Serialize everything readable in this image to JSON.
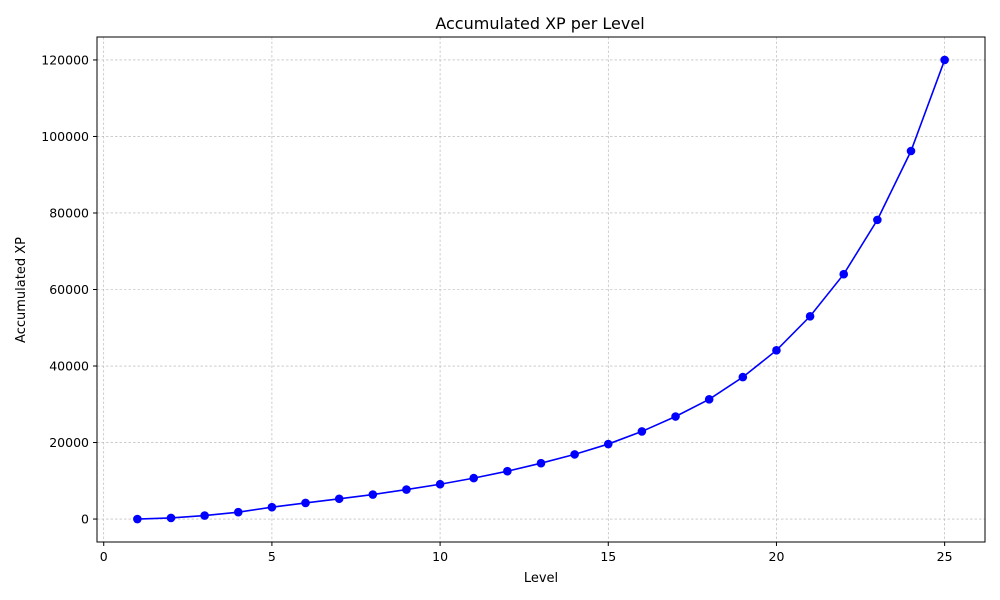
{
  "chart_data": {
    "type": "line",
    "title": "Accumulated XP per Level",
    "xlabel": "Level",
    "ylabel": "Accumulated XP",
    "xlim": [
      -0.2,
      26.2
    ],
    "ylim": [
      -6000,
      126000
    ],
    "xticks": [
      0,
      5,
      10,
      15,
      20,
      25
    ],
    "yticks": [
      0,
      20000,
      40000,
      60000,
      80000,
      100000,
      120000
    ],
    "grid": true,
    "series": [
      {
        "color": "#0000ff",
        "marker": "circle",
        "x": [
          1,
          2,
          3,
          4,
          5,
          6,
          7,
          8,
          9,
          10,
          11,
          12,
          13,
          14,
          15,
          16,
          17,
          18,
          19,
          20,
          21,
          22,
          23,
          24,
          25
        ],
        "y": [
          0,
          300,
          900,
          1800,
          3100,
          4200,
          5300,
          6400,
          7700,
          9100,
          10700,
          12500,
          14600,
          16900,
          19600,
          22900,
          26800,
          31300,
          37100,
          44100,
          53000,
          64000,
          78200,
          96200,
          120000
        ]
      }
    ]
  }
}
